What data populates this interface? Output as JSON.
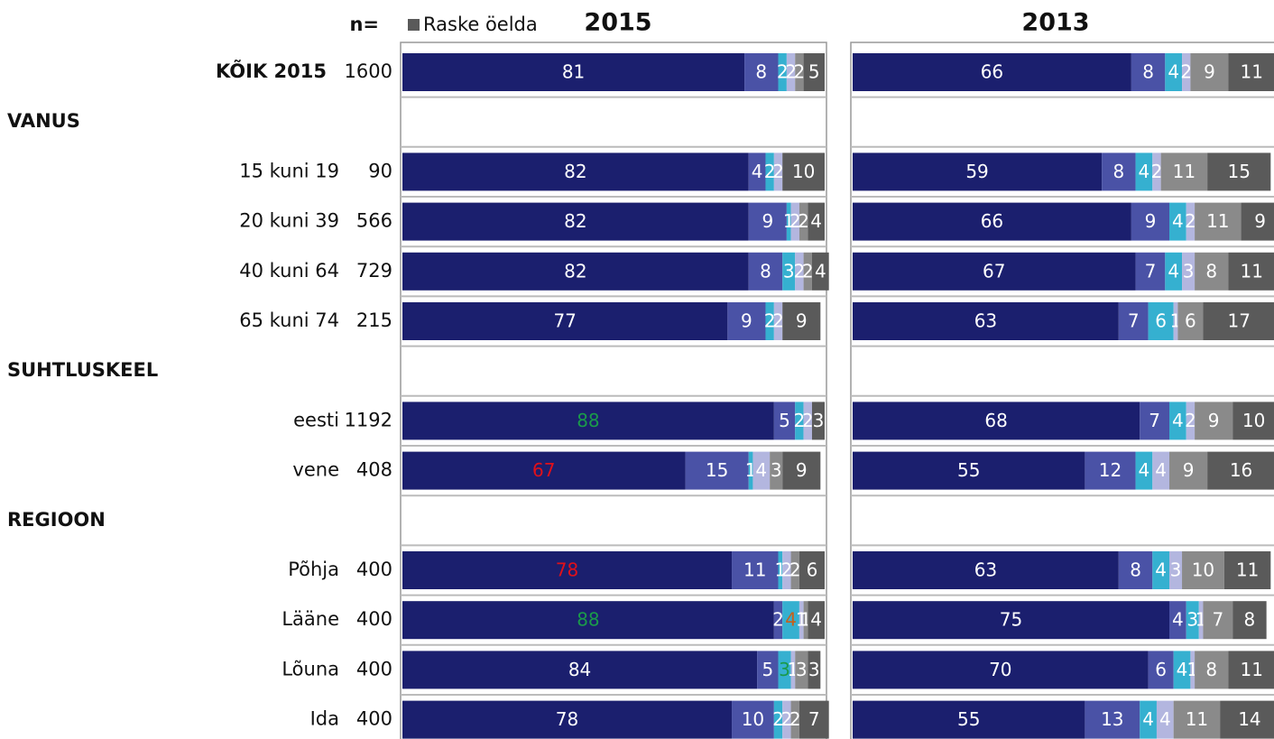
{
  "row_labels": {
    "n_header": "n=",
    "categories": [
      "KÕIK 2015",
      "VANUS",
      "15 kuni 19",
      "20 kuni 39",
      "40 kuni 64",
      "65 kuni 74",
      "SUHTLUSKEEL",
      "eesti",
      "vene",
      "REGIOON",
      "Põhja",
      "Lääne",
      "Lõuna",
      "Ida"
    ],
    "n": [
      1600,
      null,
      90,
      566,
      729,
      215,
      null,
      1192,
      408,
      null,
      400,
      400,
      400,
      400
    ]
  },
  "chart_data": [
    {
      "type": "bar",
      "orientation": "horizontal",
      "stacked": true,
      "title": "2015",
      "xlim": [
        0,
        100
      ],
      "series": [
        {
          "color": "#1b1f6e",
          "values": [
            81,
            null,
            82,
            82,
            82,
            77,
            null,
            88,
            67,
            null,
            78,
            88,
            84,
            78
          ]
        },
        {
          "color": "#4a52a6",
          "values": [
            8,
            null,
            4,
            9,
            8,
            9,
            null,
            5,
            15,
            null,
            11,
            2,
            5,
            10
          ]
        },
        {
          "color": "#35b0d0",
          "values": [
            2,
            null,
            2,
            1,
            3,
            2,
            null,
            2,
            1,
            null,
            1,
            4,
            3,
            2
          ]
        },
        {
          "color": "#b3b6df",
          "values": [
            2,
            null,
            2,
            2,
            2,
            2,
            null,
            2,
            4,
            null,
            2,
            1,
            1,
            2
          ]
        },
        {
          "color": "#8a8a8a",
          "values": [
            2,
            null,
            null,
            2,
            2,
            null,
            null,
            null,
            3,
            null,
            2,
            1,
            3,
            2
          ]
        },
        {
          "name": "Raske öelda",
          "color": "#5a5a5a",
          "values": [
            5,
            null,
            10,
            4,
            4,
            9,
            null,
            3,
            9,
            null,
            6,
            4,
            3,
            7
          ]
        }
      ],
      "highlights": [
        {
          "series": 0,
          "index": 7,
          "color": "#1a9a4a"
        },
        {
          "series": 0,
          "index": 8,
          "color": "#e0101a"
        },
        {
          "series": 0,
          "index": 10,
          "color": "#e0101a"
        },
        {
          "series": 0,
          "index": 11,
          "color": "#1a9a4a"
        },
        {
          "series": 2,
          "index": 11,
          "color": "#c8601a"
        },
        {
          "series": 2,
          "index": 12,
          "color": "#1a9a4a"
        }
      ]
    },
    {
      "type": "bar",
      "orientation": "horizontal",
      "stacked": true,
      "title": "2013",
      "xlim": [
        0,
        100
      ],
      "series": [
        {
          "color": "#1b1f6e",
          "values": [
            66,
            null,
            59,
            66,
            67,
            63,
            null,
            68,
            55,
            null,
            63,
            75,
            70,
            55
          ]
        },
        {
          "color": "#4a52a6",
          "values": [
            8,
            null,
            8,
            9,
            7,
            7,
            null,
            7,
            12,
            null,
            8,
            4,
            6,
            13
          ]
        },
        {
          "color": "#35b0d0",
          "values": [
            4,
            null,
            4,
            4,
            4,
            6,
            null,
            4,
            4,
            null,
            4,
            3,
            4,
            4
          ]
        },
        {
          "color": "#b3b6df",
          "values": [
            2,
            null,
            2,
            2,
            3,
            1,
            null,
            2,
            4,
            null,
            3,
            1,
            1,
            4
          ]
        },
        {
          "color": "#8a8a8a",
          "values": [
            9,
            null,
            11,
            11,
            8,
            6,
            null,
            9,
            9,
            null,
            10,
            7,
            8,
            11
          ]
        },
        {
          "color": "#5a5a5a",
          "values": [
            11,
            null,
            15,
            9,
            11,
            17,
            null,
            10,
            16,
            null,
            11,
            8,
            11,
            14
          ]
        }
      ]
    }
  ]
}
